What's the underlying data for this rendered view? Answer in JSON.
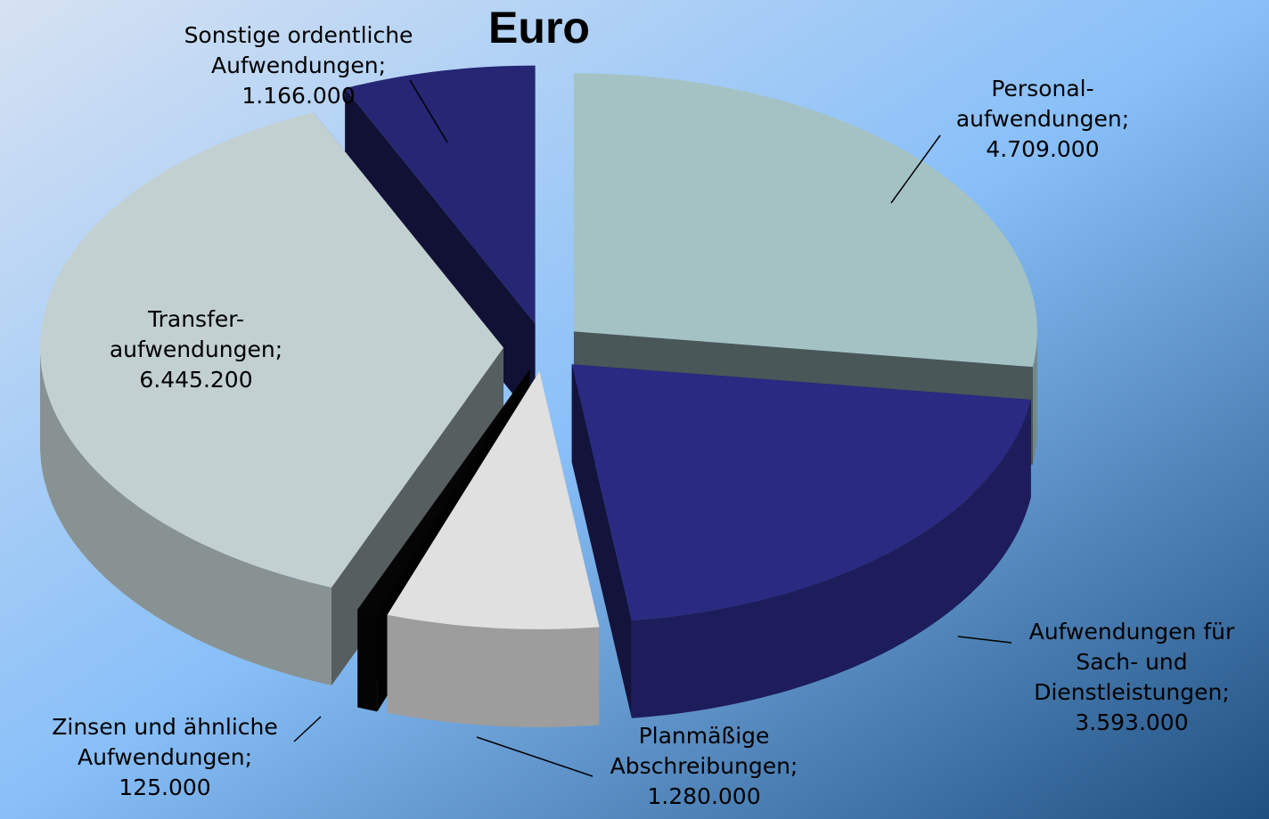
{
  "chart_data": {
    "type": "pie3d",
    "title": "Euro",
    "categories": [
      "Personal-\naufwendungen;",
      "Aufwendungen für\nSach- und\nDienstleistungen;",
      "Planmäßige\nAbschreibungen;",
      "Zinsen und ähnliche\nAufwendungen;",
      "Transfer-\naufwendungen;",
      "Sonstige ordentliche\nAufwendungen;"
    ],
    "values": [
      4709000,
      3593000,
      1280000,
      125000,
      6445200,
      1166000
    ],
    "value_labels": [
      "4.709.000",
      "3.593.000",
      "1.280.000",
      "125.000",
      "6.445.200",
      "1.166.000"
    ],
    "colors": [
      "#a4c2c4",
      "#2a2a82",
      "#e0e0e0",
      "#050505",
      "#c2d0d2",
      "#262675"
    ]
  }
}
